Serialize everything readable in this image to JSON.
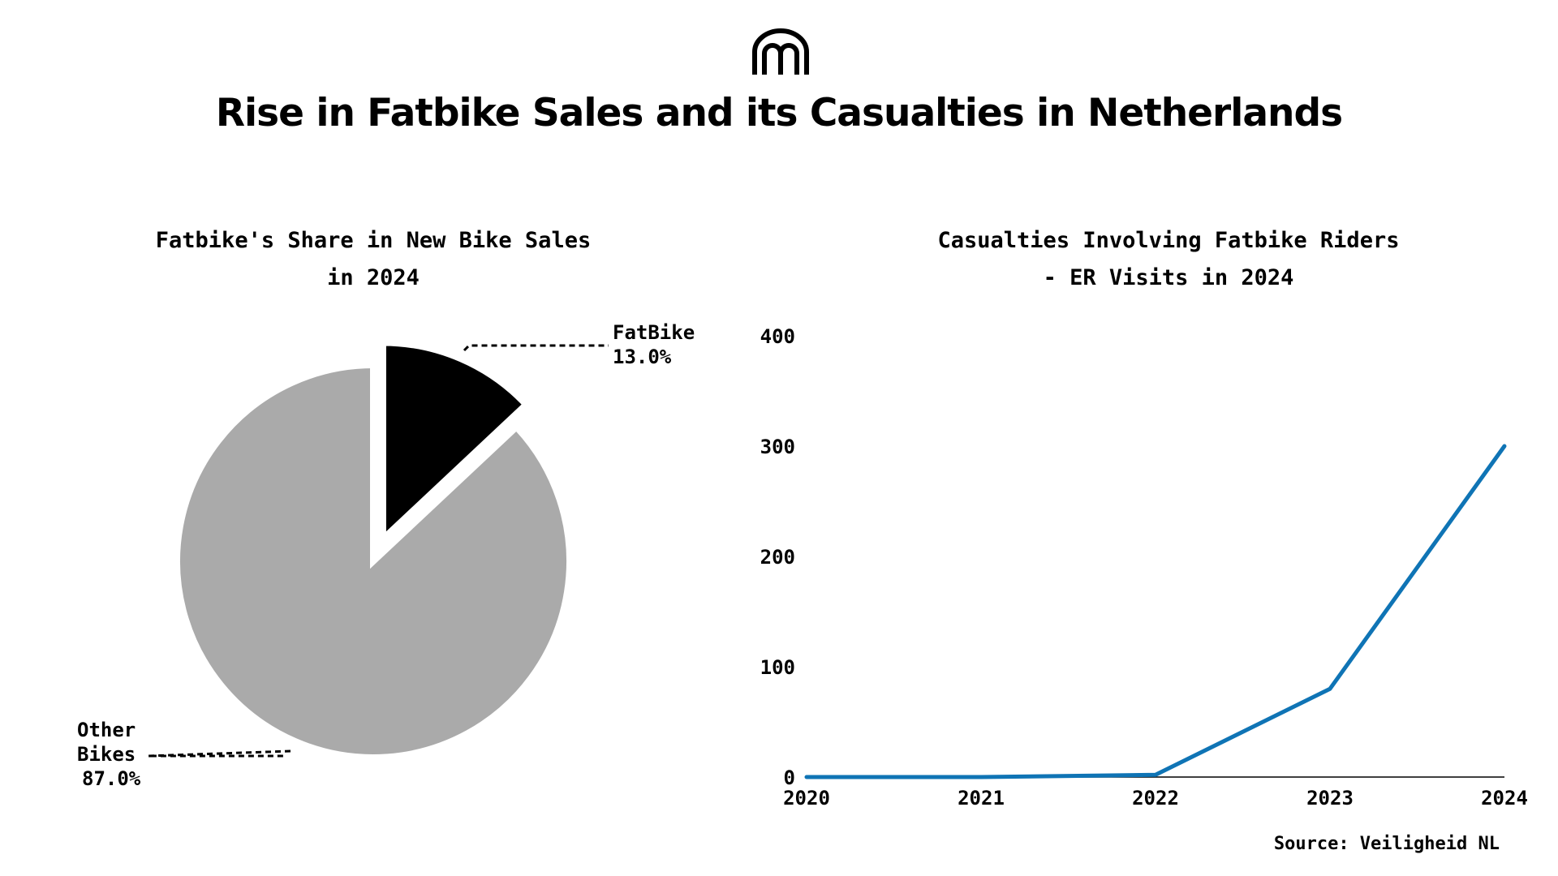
{
  "title": "Rise in Fatbike Sales and its Casualties in Netherlands",
  "source": "Source: Veiligheid NL",
  "chart_data": [
    {
      "type": "pie",
      "title": [
        "Fatbike's Share in New Bike Sales",
        "in 2024"
      ],
      "slices": [
        {
          "label": "FatBike",
          "label_lines": [
            "FatBike"
          ],
          "pct_label": "13.0%",
          "value": 13.0,
          "color": "#000000",
          "exploded": true
        },
        {
          "label": "Other Bikes",
          "label_lines": [
            "Other",
            "Bikes"
          ],
          "pct_label": "87.0%",
          "value": 87.0,
          "color": "#aaaaaa",
          "exploded": false
        }
      ]
    },
    {
      "type": "line",
      "title": [
        "Casualties Involving Fatbike Riders",
        "- ER Visits in 2024"
      ],
      "x": [
        "2020",
        "2021",
        "2022",
        "2023",
        "2024"
      ],
      "series": [
        {
          "values": [
            0,
            0,
            2,
            80,
            300
          ],
          "color": "#0f74b5"
        }
      ],
      "ylim": [
        0,
        400
      ],
      "yticks": [
        0,
        100,
        200,
        300,
        400
      ],
      "grid": false
    }
  ]
}
